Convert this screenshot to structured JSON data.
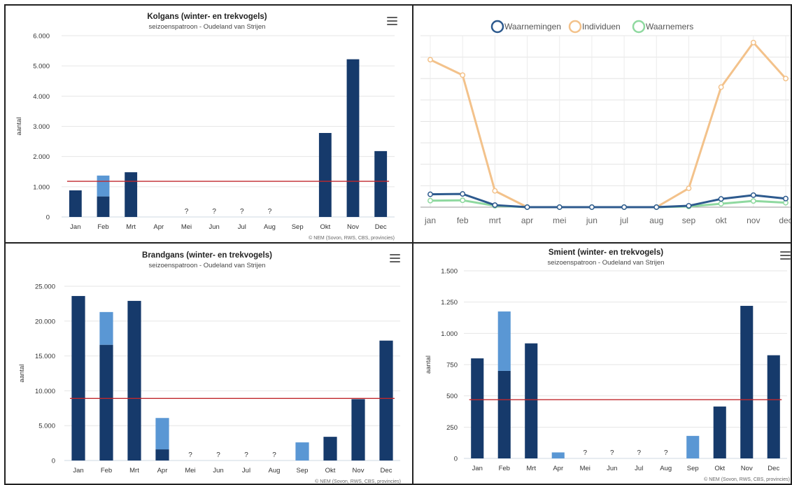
{
  "panels": {
    "kolgans": {
      "chart_data": {
        "type": "bar",
        "title": "Kolgans (winter- en trekvogels)",
        "subtitle": "seizoenspatroon - Oudeland van Strijen",
        "ylabel": "aantal",
        "credits": "© NEM (Sovon, RWS, CBS, provincies)",
        "categories": [
          "Jan",
          "Feb",
          "Mrt",
          "Apr",
          "Mei",
          "Jun",
          "Jul",
          "Aug",
          "Sep",
          "Okt",
          "Nov",
          "Dec"
        ],
        "y_ticks": [
          0,
          1000,
          2000,
          3000,
          4000,
          5000,
          6000
        ],
        "y_tick_labels": [
          "0",
          "1.000",
          "2.000",
          "3.000",
          "4.000",
          "5.000",
          "6.000"
        ],
        "ylim": [
          0,
          6000
        ],
        "series": [
          {
            "values": [
              880,
              680,
              1480,
              0,
              null,
              null,
              null,
              null,
              0,
              2780,
              5220,
              2180
            ],
            "color": "#163a6b"
          },
          {
            "values": [
              0,
              690,
              0,
              0,
              null,
              null,
              null,
              null,
              0,
              0,
              0,
              0
            ],
            "color": "#5a97d4"
          }
        ],
        "unknown_label": "?",
        "unknown_months": [
          "Mei",
          "Jun",
          "Jul",
          "Aug"
        ],
        "reference_line": {
          "value": 1180,
          "color": "#c0282d"
        }
      }
    },
    "line": {
      "chart_data": {
        "type": "line",
        "categories": [
          "jan",
          "feb",
          "mrt",
          "apr",
          "mei",
          "jun",
          "jul",
          "aug",
          "sep",
          "okt",
          "nov",
          "dec"
        ],
        "legend": [
          "Waarnemingen",
          "Individuen",
          "Waarnemers"
        ],
        "ylim": [
          0,
          100
        ],
        "series": [
          {
            "name": "Waarnemingen",
            "values": [
              7.5,
              7.7,
              1.2,
              0,
              0,
              0,
              0,
              0,
              0.8,
              4.8,
              7,
              5
            ],
            "color": "#2d5a8e"
          },
          {
            "name": "Individuen",
            "values": [
              86,
              77,
              9.5,
              0,
              0,
              0,
              0,
              0,
              11,
              70,
              96,
              75
            ],
            "color": "#f3c28b"
          },
          {
            "name": "Waarnemers",
            "values": [
              3.8,
              4,
              0.8,
              0,
              0,
              0,
              0,
              0,
              0.4,
              2,
              3.6,
              2.6
            ],
            "color": "#8fd9a0"
          }
        ]
      }
    },
    "brandgans": {
      "chart_data": {
        "type": "bar",
        "title": "Brandgans (winter- en trekvogels)",
        "subtitle": "seizoenspatroon - Oudeland van Strijen",
        "ylabel": "aantal",
        "credits": "© NEM (Sovon, RWS, CBS, provincies)",
        "categories": [
          "Jan",
          "Feb",
          "Mrt",
          "Apr",
          "Mei",
          "Jun",
          "Jul",
          "Aug",
          "Sep",
          "Okt",
          "Nov",
          "Dec"
        ],
        "y_ticks": [
          0,
          5000,
          10000,
          15000,
          20000,
          25000
        ],
        "y_tick_labels": [
          "0",
          "5.000",
          "10.000",
          "15.000",
          "20.000",
          "25.000"
        ],
        "ylim": [
          0,
          25000
        ],
        "series": [
          {
            "values": [
              23600,
              16600,
              22900,
              1600,
              null,
              null,
              null,
              null,
              0,
              3400,
              8800,
              17200
            ],
            "color": "#163a6b"
          },
          {
            "values": [
              0,
              4700,
              0,
              4500,
              null,
              null,
              null,
              null,
              2600,
              0,
              0,
              0
            ],
            "color": "#5a97d4"
          }
        ],
        "unknown_label": "?",
        "unknown_months": [
          "Mei",
          "Jun",
          "Jul",
          "Aug"
        ],
        "reference_line": {
          "value": 8900,
          "color": "#c0282d"
        }
      }
    },
    "smient": {
      "chart_data": {
        "type": "bar",
        "title": "Smient (winter- en trekvogels)",
        "subtitle": "seizoenspatroon - Oudeland van Strijen",
        "ylabel": "aantal",
        "credits": "© NEM (Sovon, RWS, CBS, provincies)",
        "categories": [
          "Jan",
          "Feb",
          "Mrt",
          "Apr",
          "Mei",
          "Jun",
          "Jul",
          "Aug",
          "Sep",
          "Okt",
          "Nov",
          "Dec"
        ],
        "y_ticks": [
          0,
          250,
          500,
          750,
          1000,
          1250,
          1500
        ],
        "y_tick_labels": [
          "0",
          "250",
          "500",
          "750",
          "1.000",
          "1.250",
          "1.500"
        ],
        "ylim": [
          0,
          1500
        ],
        "series": [
          {
            "values": [
              800,
              700,
              920,
              0,
              null,
              null,
              null,
              null,
              0,
              415,
              1220,
              825
            ],
            "color": "#163a6b"
          },
          {
            "values": [
              0,
              475,
              0,
              48,
              null,
              null,
              null,
              null,
              180,
              0,
              0,
              0
            ],
            "color": "#5a97d4"
          }
        ],
        "unknown_label": "?",
        "unknown_months": [
          "Mei",
          "Jun",
          "Jul",
          "Aug"
        ],
        "reference_line": {
          "value": 470,
          "color": "#c0282d"
        }
      }
    }
  }
}
